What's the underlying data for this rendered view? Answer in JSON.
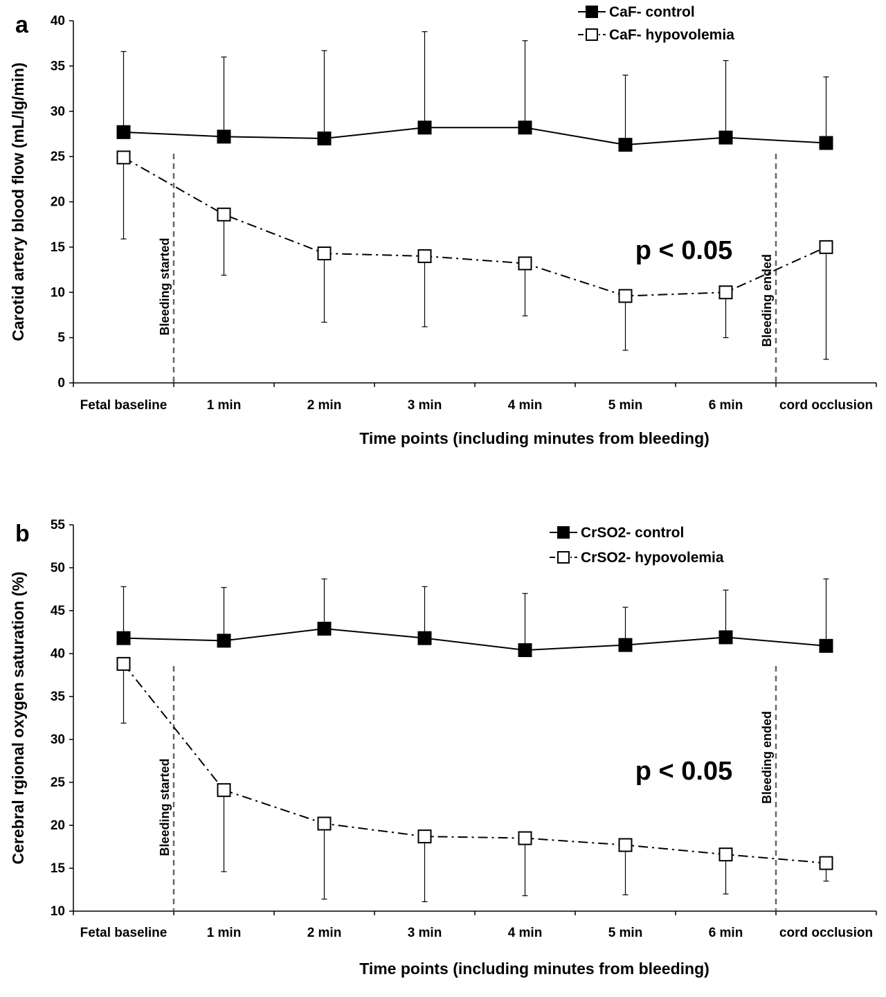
{
  "chart_data": [
    {
      "type": "line",
      "panel_label": "a",
      "categories": [
        "Fetal baseline",
        "1 min",
        "2 min",
        "3 min",
        "4 min",
        "5 min",
        "6 min",
        "cord occlusion"
      ],
      "xlabel": "Time points (including minutes from bleeding)",
      "ylabel": "Carotid artery blood flow (mL/lg/min)",
      "ylim": [
        0,
        40
      ],
      "yticks": [
        "0",
        "5",
        "10",
        "15",
        "20",
        "25",
        "30",
        "35",
        "40"
      ],
      "legend_position": "top-right",
      "annotation": "p < 0.05",
      "vlines": [
        {
          "label": "Bleeding started",
          "after_category": "Fetal baseline"
        },
        {
          "label": "Bleeding ended",
          "after_category": "6 min"
        }
      ],
      "series": [
        {
          "name": "CaF- control",
          "marker": "filled-square",
          "line": "solid",
          "values": [
            27.7,
            27.2,
            27.0,
            28.2,
            28.2,
            26.3,
            27.1,
            26.5
          ],
          "error_upper": [
            36.6,
            36.0,
            36.7,
            38.8,
            37.8,
            34.0,
            35.6,
            33.8
          ]
        },
        {
          "name": "CaF- hypovolemia",
          "marker": "open-square",
          "line": "dash-dot",
          "values": [
            24.9,
            18.6,
            14.3,
            14.0,
            13.2,
            9.6,
            10.0,
            15.0
          ],
          "error_lower": [
            15.9,
            11.9,
            6.7,
            6.2,
            7.4,
            3.6,
            5.0,
            2.6
          ]
        }
      ]
    },
    {
      "type": "line",
      "panel_label": "b",
      "categories": [
        "Fetal baseline",
        "1 min",
        "2 min",
        "3 min",
        "4 min",
        "5 min",
        "6 min",
        "cord occlusion"
      ],
      "xlabel": "Time points (including minutes from bleeding)",
      "ylabel": "Cerebral rgional oxygen saturation (%)",
      "ylim": [
        10,
        55
      ],
      "yticks": [
        "10",
        "15",
        "20",
        "25",
        "30",
        "35",
        "40",
        "45",
        "50",
        "55"
      ],
      "legend_position": "top-right",
      "annotation": "p < 0.05",
      "vlines": [
        {
          "label": "Bleeding started",
          "after_category": "Fetal baseline"
        },
        {
          "label": "Bleeding ended",
          "after_category": "6 min"
        }
      ],
      "series": [
        {
          "name": "CrSO2- control",
          "marker": "filled-square",
          "line": "solid",
          "values": [
            41.8,
            41.5,
            42.9,
            41.8,
            40.4,
            41.0,
            41.9,
            40.9
          ],
          "error_upper": [
            47.8,
            47.7,
            48.7,
            47.8,
            47.0,
            45.4,
            47.4,
            48.7
          ]
        },
        {
          "name": "CrSO2- hypovolemia",
          "marker": "open-square",
          "line": "dash-dot",
          "values": [
            38.8,
            24.1,
            20.2,
            18.7,
            18.5,
            17.7,
            16.6,
            15.6
          ],
          "error_lower": [
            31.9,
            14.6,
            11.4,
            11.1,
            11.8,
            11.9,
            12.0,
            13.5
          ]
        }
      ]
    }
  ]
}
